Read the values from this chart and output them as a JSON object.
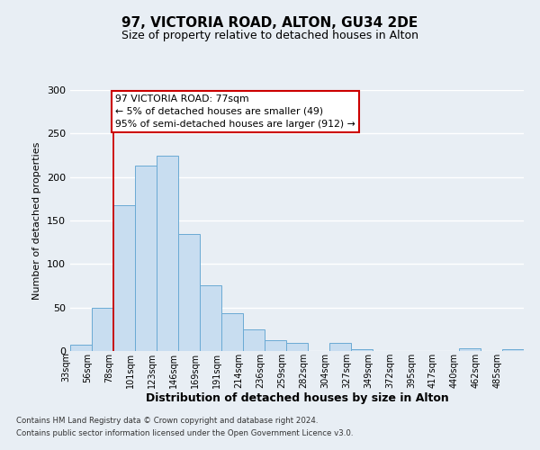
{
  "title": "97, VICTORIA ROAD, ALTON, GU34 2DE",
  "subtitle": "Size of property relative to detached houses in Alton",
  "xlabel": "Distribution of detached houses by size in Alton",
  "ylabel": "Number of detached properties",
  "bin_labels": [
    "33sqm",
    "56sqm",
    "78sqm",
    "101sqm",
    "123sqm",
    "146sqm",
    "169sqm",
    "191sqm",
    "214sqm",
    "236sqm",
    "259sqm",
    "282sqm",
    "304sqm",
    "327sqm",
    "349sqm",
    "372sqm",
    "395sqm",
    "417sqm",
    "440sqm",
    "462sqm",
    "485sqm"
  ],
  "bar_heights": [
    7,
    50,
    168,
    213,
    225,
    135,
    76,
    43,
    25,
    12,
    9,
    0,
    9,
    2,
    0,
    0,
    0,
    0,
    3,
    0,
    2
  ],
  "bar_color": "#c8ddf0",
  "bar_edge_color": "#6aaad4",
  "vline_color": "#cc0000",
  "vline_index": 2,
  "annotation_text": "97 VICTORIA ROAD: 77sqm\n← 5% of detached houses are smaller (49)\n95% of semi-detached houses are larger (912) →",
  "annotation_box_color": "#ffffff",
  "annotation_border_color": "#cc0000",
  "ylim": [
    0,
    300
  ],
  "yticks": [
    0,
    50,
    100,
    150,
    200,
    250,
    300
  ],
  "footnote1": "Contains HM Land Registry data © Crown copyright and database right 2024.",
  "footnote2": "Contains public sector information licensed under the Open Government Licence v3.0.",
  "background_color": "#e8eef4",
  "grid_color": "#ffffff"
}
